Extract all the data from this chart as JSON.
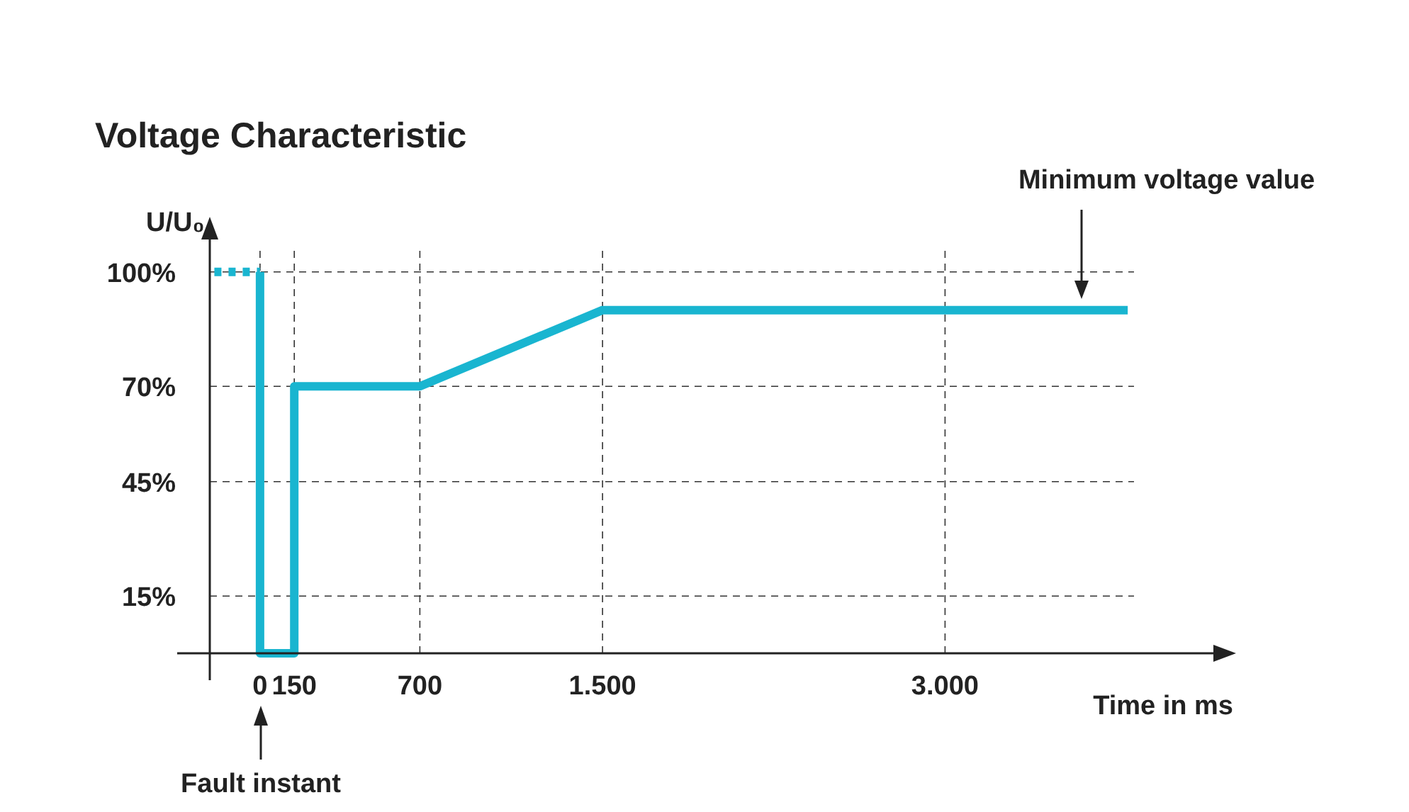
{
  "chart_data": {
    "type": "line",
    "title": "Voltage Characteristic",
    "xlabel": "Time in ms",
    "ylabel": "U/U₀",
    "xlim": [
      -220,
      4200
    ],
    "ylim": [
      0,
      110
    ],
    "xticks": [
      0,
      150,
      700,
      {
        "value": 1500,
        "label": "1.500"
      },
      {
        "value": 3000,
        "label": "3.000"
      }
    ],
    "yticks": [
      {
        "value": 15,
        "label": "15%"
      },
      {
        "value": 45,
        "label": "45%"
      },
      {
        "value": 70,
        "label": "70%"
      },
      {
        "value": 100,
        "label": "100%"
      }
    ],
    "grid": true,
    "series": [
      {
        "color": "#19b5d0",
        "x": [
          -200,
          0
        ],
        "values": [
          100,
          100
        ],
        "line_style": "dotted"
      },
      {
        "color": "#19b5d0",
        "x": [
          0,
          0,
          150,
          150,
          700,
          1500,
          3800
        ],
        "values": [
          100,
          0,
          0,
          70,
          70,
          90,
          90
        ],
        "line_style": "solid"
      }
    ],
    "annotations": [
      "Minimum voltage value",
      "Fault instant"
    ]
  }
}
